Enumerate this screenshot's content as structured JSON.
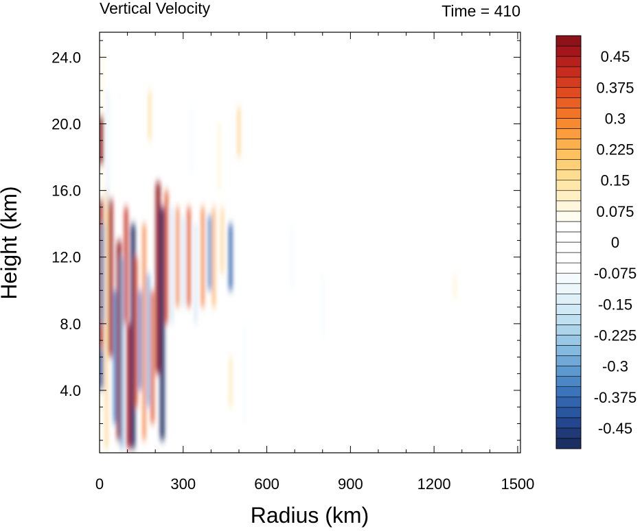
{
  "chart_data": {
    "type": "heatmap",
    "title": "Vertical Velocity",
    "right_title": "Time = 410",
    "xlabel": "Radius (km)",
    "ylabel": "Height (km)",
    "xlim": [
      0,
      1510
    ],
    "ylim": [
      0.25,
      25.5
    ],
    "x_ticks": [
      0,
      300,
      600,
      900,
      1200,
      1500
    ],
    "x_tick_labels": [
      "0",
      "300",
      "600",
      "900",
      "1200",
      "1500"
    ],
    "y_ticks": [
      4,
      8,
      12,
      16,
      20,
      24
    ],
    "y_tick_labels": [
      "4.0",
      "8.0",
      "12.0",
      "16.0",
      "20.0",
      "24.0"
    ],
    "grid": false,
    "colorbar": {
      "placement": "right",
      "levels": [
        -0.5,
        -0.475,
        -0.45,
        -0.425,
        -0.4,
        -0.375,
        -0.35,
        -0.325,
        -0.3,
        -0.275,
        -0.25,
        -0.225,
        -0.2,
        -0.175,
        -0.15,
        -0.125,
        -0.1,
        -0.075,
        -0.05,
        -0.025,
        0,
        0.025,
        0.05,
        0.075,
        0.1,
        0.125,
        0.15,
        0.175,
        0.2,
        0.225,
        0.25,
        0.275,
        0.3,
        0.325,
        0.35,
        0.375,
        0.4,
        0.425,
        0.45,
        0.475,
        0.5
      ],
      "label_values": [
        0.45,
        0.375,
        0.3,
        0.225,
        0.15,
        0.075,
        0,
        -0.075,
        -0.15,
        -0.225,
        -0.3,
        -0.375,
        -0.45
      ],
      "labels": [
        "0.45",
        "0.375",
        "0.3",
        "0.225",
        "0.15",
        "0.075",
        "0",
        "-0.075",
        "-0.15",
        "-0.225",
        "-0.3",
        "-0.375",
        "-0.45"
      ],
      "colors": [
        "#1c2f62",
        "#203a78",
        "#24468e",
        "#2a559f",
        "#3264ae",
        "#3b74bb",
        "#4b86c5",
        "#5d98ce",
        "#70a9d7",
        "#84badf",
        "#98c8e6",
        "#acd5ec",
        "#bfe0f1",
        "#d0e9f6",
        "#dff0f8",
        "#ecf6fb",
        "#f5fafd",
        "#ffffff",
        "#ffffff",
        "#ffffff",
        "#ffffff",
        "#ffffff",
        "#fffdf0",
        "#fff7dc",
        "#fff0c4",
        "#ffe7aa",
        "#fedd90",
        "#fdd077",
        "#fdc160",
        "#fcb04c",
        "#fb9d3c",
        "#f7892f",
        "#f27427",
        "#ea5f23",
        "#e04c20",
        "#d43b1f",
        "#c62d1f",
        "#b6211e",
        "#a3171c",
        "#8d121a"
      ]
    },
    "series": [
      {
        "x": 10,
        "y0": 0.5,
        "y1": 24.5,
        "value": 0.09
      },
      {
        "x": 5,
        "y0": 17.5,
        "y1": 20.5,
        "value": 0.48
      },
      {
        "x": 5,
        "y0": 6.5,
        "y1": 15.5,
        "value": 0.45
      },
      {
        "x": 5,
        "y0": 4,
        "y1": 6.5,
        "value": -0.45
      },
      {
        "x": 12,
        "y0": 8,
        "y1": 14,
        "value": -0.3
      },
      {
        "x": 25,
        "y0": 0.5,
        "y1": 16,
        "value": 0.2
      },
      {
        "x": 30,
        "y0": 15,
        "y1": 22,
        "value": -0.15
      },
      {
        "x": 40,
        "y0": 6,
        "y1": 15.5,
        "value": 0.45
      },
      {
        "x": 55,
        "y0": 2,
        "y1": 10,
        "value": -0.35
      },
      {
        "x": 70,
        "y0": 1,
        "y1": 13,
        "value": 0.48
      },
      {
        "x": 80,
        "y0": 0.5,
        "y1": 12,
        "value": -0.3
      },
      {
        "x": 95,
        "y0": 8,
        "y1": 15,
        "value": 0.4
      },
      {
        "x": 105,
        "y0": 0.5,
        "y1": 8,
        "value": 0.45
      },
      {
        "x": 120,
        "y0": 0.5,
        "y1": 14,
        "value": -0.5
      },
      {
        "x": 130,
        "y0": 3,
        "y1": 12,
        "value": 0.35
      },
      {
        "x": 145,
        "y0": 4,
        "y1": 10,
        "value": -0.35
      },
      {
        "x": 160,
        "y0": 1,
        "y1": 14,
        "value": 0.3
      },
      {
        "x": 175,
        "y0": 3,
        "y1": 11,
        "value": -0.3
      },
      {
        "x": 190,
        "y0": 2,
        "y1": 10,
        "value": 0.35
      },
      {
        "x": 210,
        "y0": 5,
        "y1": 16.5,
        "value": 0.5
      },
      {
        "x": 225,
        "y0": 1,
        "y1": 15,
        "value": -0.5
      },
      {
        "x": 240,
        "y0": 8,
        "y1": 16,
        "value": 0.35
      },
      {
        "x": 260,
        "y0": 8,
        "y1": 15,
        "value": -0.2
      },
      {
        "x": 280,
        "y0": 9,
        "y1": 15,
        "value": 0.3
      },
      {
        "x": 300,
        "y0": 9,
        "y1": 14.5,
        "value": -0.2
      },
      {
        "x": 320,
        "y0": 9,
        "y1": 15,
        "value": 0.35
      },
      {
        "x": 345,
        "y0": 8,
        "y1": 14,
        "value": -0.2
      },
      {
        "x": 370,
        "y0": 9,
        "y1": 15,
        "value": 0.3
      },
      {
        "x": 395,
        "y0": 10,
        "y1": 14.5,
        "value": -0.35
      },
      {
        "x": 410,
        "y0": 9,
        "y1": 15,
        "value": 0.25
      },
      {
        "x": 440,
        "y0": 11,
        "y1": 15,
        "value": 0.2
      },
      {
        "x": 470,
        "y0": 10,
        "y1": 14,
        "value": -0.4
      },
      {
        "x": 500,
        "y0": 18,
        "y1": 21,
        "value": 0.2
      },
      {
        "x": 330,
        "y0": 17,
        "y1": 21,
        "value": -0.1
      },
      {
        "x": 430,
        "y0": 16,
        "y1": 20,
        "value": 0.12
      },
      {
        "x": 470,
        "y0": 3,
        "y1": 6,
        "value": 0.15
      },
      {
        "x": 520,
        "y0": 2,
        "y1": 8,
        "value": -0.08
      },
      {
        "x": 690,
        "y0": 10,
        "y1": 14,
        "value": -0.1
      },
      {
        "x": 800,
        "y0": 7,
        "y1": 11,
        "value": -0.08
      },
      {
        "x": 1275,
        "y0": 9.5,
        "y1": 11,
        "value": 0.12
      },
      {
        "x": 180,
        "y0": 19,
        "y1": 22,
        "value": 0.18
      }
    ]
  }
}
